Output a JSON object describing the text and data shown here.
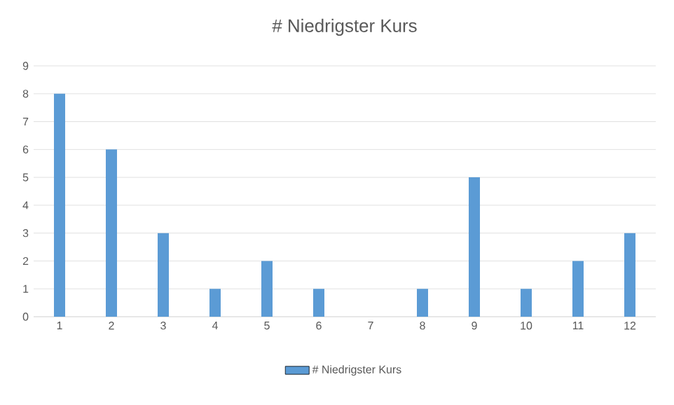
{
  "chart_data": {
    "type": "bar",
    "title": "# Niedrigster Kurs",
    "categories": [
      "1",
      "2",
      "3",
      "4",
      "5",
      "6",
      "7",
      "8",
      "9",
      "10",
      "11",
      "12"
    ],
    "series": [
      {
        "name": "# Niedrigster Kurs",
        "color": "#5b9bd5",
        "values": [
          8,
          6,
          3,
          1,
          2,
          1,
          0,
          1,
          5,
          1,
          2,
          3
        ]
      }
    ],
    "ylim": [
      0,
      9
    ],
    "yticks": [
      0,
      1,
      2,
      3,
      4,
      5,
      6,
      7,
      8,
      9
    ],
    "grid": "y",
    "legend": "bottom"
  }
}
